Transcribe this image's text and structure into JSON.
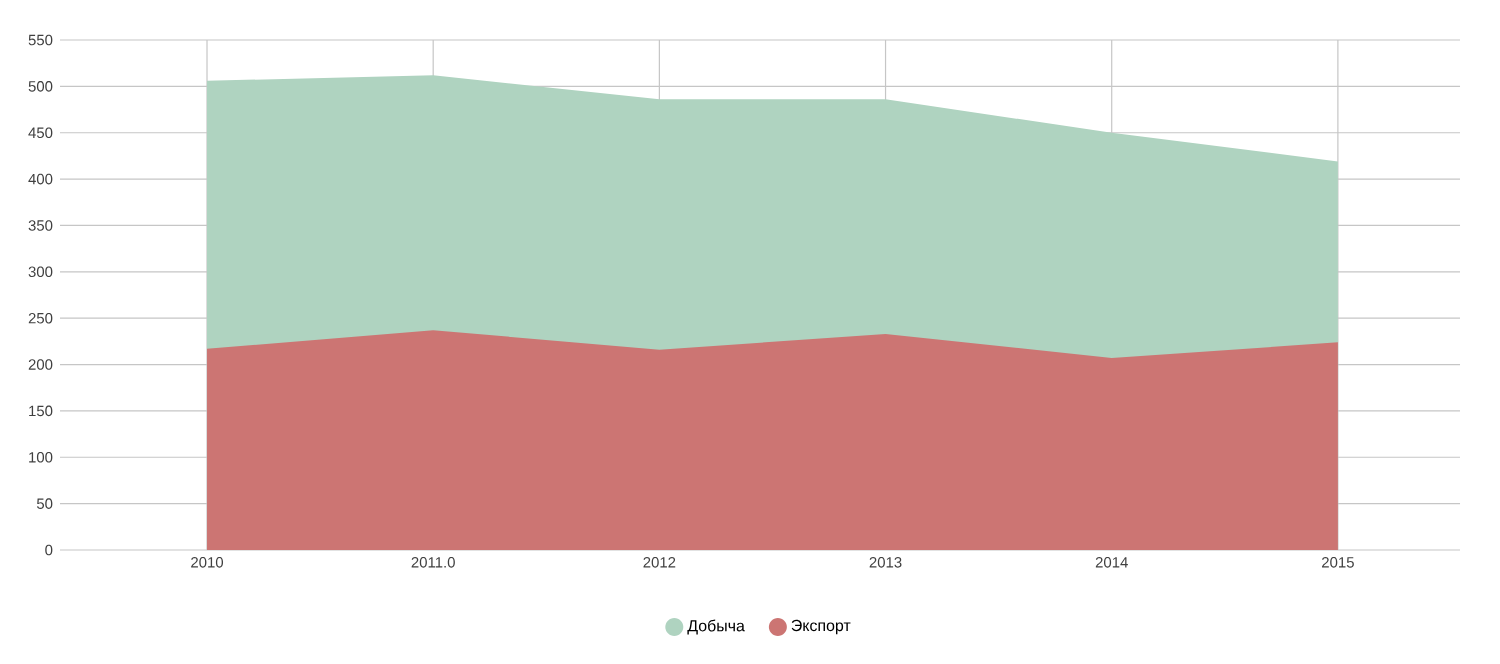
{
  "chart_data": {
    "type": "area",
    "categories": [
      "2010",
      "2011.0",
      "2012",
      "2013",
      "2014",
      "2015"
    ],
    "series": [
      {
        "name": "Добыча",
        "color": "#afd3c0",
        "values": [
          506,
          512,
          486,
          486,
          450,
          419
        ]
      },
      {
        "name": "Экспорт",
        "color": "#cc7573",
        "values": [
          217,
          237,
          216,
          233,
          207,
          224
        ]
      }
    ],
    "ylim": [
      0,
      550
    ],
    "yticks": [
      0,
      50,
      100,
      150,
      200,
      250,
      300,
      350,
      400,
      450,
      500,
      550
    ],
    "grid": true,
    "legend": "bottom"
  }
}
